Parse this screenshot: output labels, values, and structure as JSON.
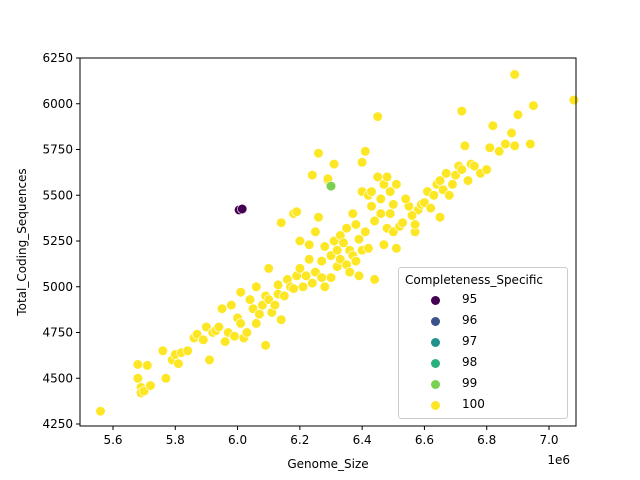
{
  "chart_data": {
    "type": "scatter",
    "title": "",
    "xlabel": "Genome_Size",
    "ylabel": "Total_Coding_Sequences",
    "x_offset_label": "1e6",
    "xlim": [
      5.49,
      7.15
    ],
    "ylim": [
      4225,
      6250
    ],
    "x_ticks": [
      5.6,
      5.8,
      6.0,
      6.2,
      6.4,
      6.6,
      6.8,
      7.0
    ],
    "x_tick_labels": [
      "5.6",
      "5.8",
      "6.0",
      "6.2",
      "6.4",
      "6.6",
      "6.8",
      "7.0"
    ],
    "y_ticks": [
      4250,
      4500,
      4750,
      5000,
      5250,
      5500,
      5750,
      6000,
      6250
    ],
    "y_tick_labels": [
      "4250",
      "4500",
      "4750",
      "5000",
      "5250",
      "5500",
      "5750",
      "6000",
      "6250"
    ],
    "grid": false,
    "legend": {
      "title": "Completeness_Specific",
      "position": "lower right",
      "entries": [
        {
          "label": "95",
          "color": "#440154"
        },
        {
          "label": "96",
          "color": "#3b528b"
        },
        {
          "label": "97",
          "color": "#21918c"
        },
        {
          "label": "98",
          "color": "#2ab07f"
        },
        {
          "label": "99",
          "color": "#7ad151"
        },
        {
          "label": "100",
          "color": "#fde725"
        }
      ]
    },
    "series": [
      {
        "name": "95",
        "color": "#440154",
        "points": [
          [
            6.005,
            5420
          ],
          [
            6.015,
            5425
          ]
        ]
      },
      {
        "name": "99",
        "color": "#7ad151",
        "points": [
          [
            6.3,
            5550
          ]
        ]
      },
      {
        "name": "100",
        "color": "#fde725",
        "points": [
          [
            5.56,
            4320
          ],
          [
            5.68,
            4575
          ],
          [
            5.68,
            4500
          ],
          [
            5.69,
            4450
          ],
          [
            5.69,
            4420
          ],
          [
            5.7,
            4430
          ],
          [
            5.71,
            4570
          ],
          [
            5.72,
            4460
          ],
          [
            5.76,
            4650
          ],
          [
            5.77,
            4500
          ],
          [
            5.79,
            4600
          ],
          [
            5.8,
            4630
          ],
          [
            5.81,
            4580
          ],
          [
            5.82,
            4640
          ],
          [
            5.84,
            4650
          ],
          [
            5.86,
            4720
          ],
          [
            5.87,
            4740
          ],
          [
            5.89,
            4710
          ],
          [
            5.9,
            4780
          ],
          [
            5.91,
            4600
          ],
          [
            5.92,
            4750
          ],
          [
            5.93,
            4760
          ],
          [
            5.94,
            4780
          ],
          [
            5.95,
            4880
          ],
          [
            5.96,
            4700
          ],
          [
            5.97,
            4750
          ],
          [
            5.98,
            4900
          ],
          [
            5.99,
            4730
          ],
          [
            6.0,
            4830
          ],
          [
            6.01,
            4800
          ],
          [
            6.01,
            4970
          ],
          [
            6.02,
            4720
          ],
          [
            6.03,
            4750
          ],
          [
            6.04,
            4930
          ],
          [
            6.05,
            4880
          ],
          [
            6.06,
            5000
          ],
          [
            6.06,
            4800
          ],
          [
            6.07,
            4850
          ],
          [
            6.08,
            4900
          ],
          [
            6.09,
            4680
          ],
          [
            6.09,
            4950
          ],
          [
            6.1,
            4930
          ],
          [
            6.1,
            5100
          ],
          [
            6.11,
            4860
          ],
          [
            6.12,
            4900
          ],
          [
            6.13,
            5010
          ],
          [
            6.13,
            4960
          ],
          [
            6.14,
            5350
          ],
          [
            6.14,
            4820
          ],
          [
            6.15,
            4950
          ],
          [
            6.16,
            5040
          ],
          [
            6.17,
            5000
          ],
          [
            6.18,
            4990
          ],
          [
            6.18,
            5400
          ],
          [
            6.19,
            5410
          ],
          [
            6.19,
            5060
          ],
          [
            6.2,
            5100
          ],
          [
            6.2,
            5250
          ],
          [
            6.21,
            5000
          ],
          [
            6.22,
            5060
          ],
          [
            6.23,
            5150
          ],
          [
            6.23,
            5230
          ],
          [
            6.24,
            5610
          ],
          [
            6.24,
            5020
          ],
          [
            6.25,
            5080
          ],
          [
            6.25,
            5300
          ],
          [
            6.26,
            5380
          ],
          [
            6.26,
            5730
          ],
          [
            6.27,
            5140
          ],
          [
            6.27,
            5050
          ],
          [
            6.28,
            5000
          ],
          [
            6.28,
            5220
          ],
          [
            6.29,
            5580
          ],
          [
            6.29,
            5590
          ],
          [
            6.3,
            5170
          ],
          [
            6.3,
            5050
          ],
          [
            6.31,
            5250
          ],
          [
            6.31,
            5670
          ],
          [
            6.32,
            5200
          ],
          [
            6.32,
            5110
          ],
          [
            6.33,
            5280
          ],
          [
            6.33,
            5150
          ],
          [
            6.34,
            5240
          ],
          [
            6.35,
            5120
          ],
          [
            6.35,
            5320
          ],
          [
            6.36,
            5200
          ],
          [
            6.36,
            5080
          ],
          [
            6.37,
            5400
          ],
          [
            6.37,
            5170
          ],
          [
            6.38,
            5140
          ],
          [
            6.38,
            5340
          ],
          [
            6.39,
            5260
          ],
          [
            6.39,
            5060
          ],
          [
            6.4,
            5520
          ],
          [
            6.4,
            5200
          ],
          [
            6.4,
            5680
          ],
          [
            6.41,
            5300
          ],
          [
            6.41,
            5740
          ],
          [
            6.42,
            5500
          ],
          [
            6.42,
            5210
          ],
          [
            6.43,
            5440
          ],
          [
            6.43,
            5520
          ],
          [
            6.44,
            5040
          ],
          [
            6.44,
            5360
          ],
          [
            6.45,
            5600
          ],
          [
            6.45,
            5930
          ],
          [
            6.46,
            5480
          ],
          [
            6.46,
            5400
          ],
          [
            6.47,
            5230
          ],
          [
            6.47,
            5560
          ],
          [
            6.48,
            5600
          ],
          [
            6.48,
            5320
          ],
          [
            6.49,
            5400
          ],
          [
            6.49,
            5520
          ],
          [
            6.5,
            5300
          ],
          [
            6.5,
            5450
          ],
          [
            6.51,
            5210
          ],
          [
            6.51,
            5560
          ],
          [
            6.52,
            5330
          ],
          [
            6.57,
            5300
          ],
          [
            6.57,
            5340
          ],
          [
            6.58,
            5420
          ],
          [
            6.59,
            5450
          ],
          [
            6.6,
            5460
          ],
          [
            6.61,
            5520
          ],
          [
            6.62,
            5430
          ],
          [
            6.63,
            5500
          ],
          [
            6.64,
            5560
          ],
          [
            6.65,
            5380
          ],
          [
            6.65,
            5580
          ],
          [
            6.66,
            5530
          ],
          [
            6.67,
            5620
          ],
          [
            6.68,
            5500
          ],
          [
            6.69,
            5560
          ],
          [
            6.7,
            5610
          ],
          [
            6.71,
            5660
          ],
          [
            6.72,
            5960
          ],
          [
            6.72,
            5640
          ],
          [
            6.73,
            5770
          ],
          [
            6.74,
            5580
          ],
          [
            6.75,
            5670
          ],
          [
            6.76,
            5660
          ],
          [
            6.78,
            5620
          ],
          [
            6.8,
            5640
          ],
          [
            6.81,
            5760
          ],
          [
            6.82,
            5880
          ],
          [
            6.84,
            5740
          ],
          [
            6.86,
            5780
          ],
          [
            6.88,
            5840
          ],
          [
            6.89,
            6160
          ],
          [
            6.9,
            5940
          ],
          [
            6.89,
            5770
          ],
          [
            6.94,
            5780
          ],
          [
            6.95,
            5990
          ],
          [
            7.08,
            6020
          ],
          [
            6.55,
            5440
          ],
          [
            6.56,
            5390
          ],
          [
            6.54,
            5480
          ],
          [
            6.53,
            5350
          ]
        ]
      }
    ]
  }
}
